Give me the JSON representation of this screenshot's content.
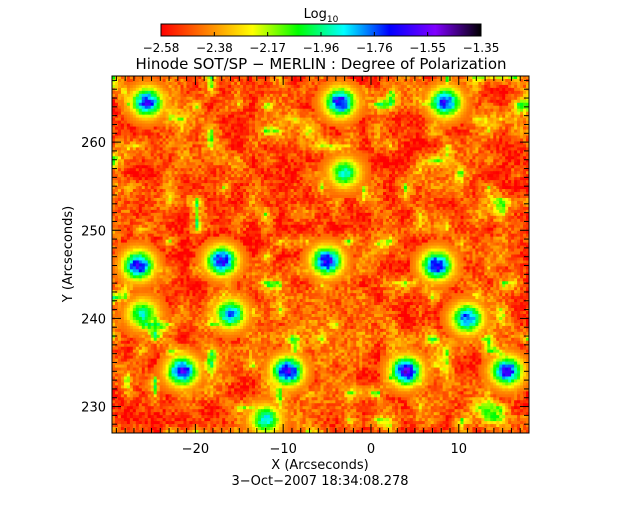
{
  "chart_data": {
    "type": "heatmap",
    "title": "Hinode SOT/SP − MERLIN : Degree of Polarization",
    "xlabel": "X (Arcseconds)",
    "ylabel": "Y (Arcseconds)",
    "date": "3−Oct−2007 18:34:08.278",
    "xlim": [
      -29.5,
      18.0
    ],
    "ylim": [
      227.0,
      267.5
    ],
    "x_ticks": [
      "−20",
      "−10",
      "0",
      "10"
    ],
    "x_tick_values": [
      -20,
      -10,
      0,
      10
    ],
    "y_ticks": [
      "230",
      "240",
      "250",
      "260"
    ],
    "y_tick_values": [
      230,
      240,
      250,
      260
    ],
    "colorbar": {
      "label": "Log",
      "label_subscript": "10",
      "min": -2.58,
      "max": -1.35,
      "tick_labels": [
        "−2.58",
        "−2.38",
        "−2.17",
        "−1.96",
        "−1.76",
        "−1.55",
        "−1.35"
      ],
      "colormap": [
        "#ff0000",
        "#ff8000",
        "#ffff00",
        "#00ff00",
        "#00ffff",
        "#0000ff",
        "#8000ff",
        "#000000"
      ]
    },
    "background_value": -2.45,
    "features": [
      {
        "x": -26.5,
        "y": 246.0,
        "value": -1.6
      },
      {
        "x": -17.0,
        "y": 246.5,
        "value": -1.6
      },
      {
        "x": -5.0,
        "y": 246.5,
        "value": -1.6
      },
      {
        "x": 7.5,
        "y": 246.0,
        "value": -1.6
      },
      {
        "x": -25.5,
        "y": 264.5,
        "value": -1.65
      },
      {
        "x": -3.5,
        "y": 264.5,
        "value": -1.6
      },
      {
        "x": 8.5,
        "y": 264.5,
        "value": -1.65
      },
      {
        "x": -21.5,
        "y": 234.0,
        "value": -1.6
      },
      {
        "x": -9.5,
        "y": 234.0,
        "value": -1.55
      },
      {
        "x": 4.0,
        "y": 234.0,
        "value": -1.55
      },
      {
        "x": 15.5,
        "y": 234.0,
        "value": -1.6
      },
      {
        "x": -16.0,
        "y": 240.5,
        "value": -1.75
      },
      {
        "x": 11.0,
        "y": 240.0,
        "value": -1.7
      },
      {
        "x": -26.0,
        "y": 240.5,
        "value": -1.9
      },
      {
        "x": -12.0,
        "y": 228.5,
        "value": -1.85
      },
      {
        "x": -3.0,
        "y": 256.5,
        "value": -1.9
      }
    ]
  }
}
